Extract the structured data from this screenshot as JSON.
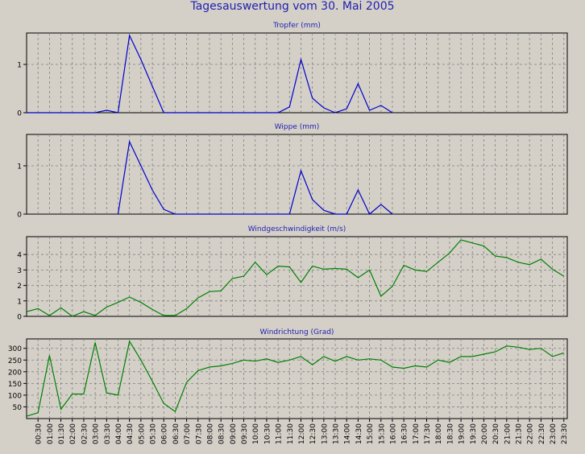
{
  "title": "Tagesauswertung vom 30. Mai 2005",
  "chart_data": [
    {
      "type": "line",
      "title": "Tropfer (mm)",
      "color": "#0000cc",
      "ylim": [
        0,
        1.6
      ],
      "yticks": [
        0,
        1
      ],
      "x": [
        "00:00",
        "00:30",
        "01:00",
        "01:30",
        "02:00",
        "02:30",
        "03:00",
        "03:30",
        "04:00",
        "04:30",
        "05:00",
        "05:30",
        "06:00",
        "06:30",
        "07:00",
        "07:30",
        "08:00",
        "08:30",
        "09:00",
        "09:30",
        "10:00",
        "10:30",
        "11:00",
        "11:30",
        "12:00",
        "12:30",
        "13:00",
        "13:30",
        "14:00",
        "14:30",
        "15:00",
        "15:30",
        "16:00"
      ],
      "values": [
        0,
        0,
        0,
        0,
        0,
        0,
        0,
        0.05,
        0,
        1.6,
        1.1,
        0.55,
        0,
        0,
        0,
        0,
        0,
        0,
        0,
        0,
        0,
        0,
        0,
        0.12,
        1.1,
        0.3,
        0.1,
        0,
        0.08,
        0.6,
        0.05,
        0.15,
        0
      ]
    },
    {
      "type": "line",
      "title": "Wippe (mm)",
      "color": "#0000cc",
      "ylim": [
        0,
        1.6
      ],
      "yticks": [
        0,
        1
      ],
      "x": [
        "04:00",
        "04:30",
        "05:00",
        "05:30",
        "06:00",
        "06:30",
        "07:00",
        "07:30",
        "08:00",
        "08:30",
        "09:00",
        "09:30",
        "10:00",
        "10:30",
        "11:00",
        "11:30",
        "12:00",
        "12:30",
        "13:00",
        "13:30",
        "14:00",
        "14:30",
        "15:00",
        "15:30",
        "16:00"
      ],
      "values": [
        0,
        1.5,
        1.0,
        0.5,
        0.1,
        0,
        0,
        0,
        0,
        0,
        0,
        0,
        0,
        0,
        0,
        0,
        0.9,
        0.3,
        0.08,
        0,
        0,
        0.5,
        0,
        0.2,
        0
      ]
    },
    {
      "type": "line",
      "title": "Windgeschwindigkeit (m/s)",
      "color": "#008000",
      "ylim": [
        0,
        5
      ],
      "yticks": [
        0,
        1,
        2,
        3,
        4
      ],
      "x": [
        "00:00",
        "00:30",
        "01:00",
        "01:30",
        "02:00",
        "02:30",
        "03:00",
        "03:30",
        "04:00",
        "04:30",
        "05:00",
        "05:30",
        "06:00",
        "06:30",
        "07:00",
        "07:30",
        "08:00",
        "08:30",
        "09:00",
        "09:30",
        "10:00",
        "10:30",
        "11:00",
        "11:30",
        "12:00",
        "12:30",
        "13:00",
        "13:30",
        "14:00",
        "14:30",
        "15:00",
        "15:30",
        "16:00",
        "16:30",
        "17:00",
        "17:30",
        "18:00",
        "18:30",
        "19:00",
        "19:30",
        "20:00",
        "20:30",
        "21:00",
        "21:30",
        "22:00",
        "22:30",
        "23:00",
        "23:30"
      ],
      "values": [
        0.3,
        0.5,
        0.05,
        0.55,
        0,
        0.3,
        0.05,
        0.6,
        0.9,
        1.25,
        0.9,
        0.45,
        0.05,
        0.05,
        0.5,
        1.2,
        1.6,
        1.65,
        2.45,
        2.6,
        3.5,
        2.7,
        3.25,
        3.2,
        2.2,
        3.25,
        3.05,
        3.1,
        3.05,
        2.5,
        3,
        1.3,
        1.95,
        3.3,
        3,
        2.9,
        3.5,
        4.1,
        4.95,
        4.75,
        4.55,
        3.9,
        3.8,
        3.5,
        3.35,
        3.7,
        3.05,
        2.6
      ]
    },
    {
      "type": "line",
      "title": "Windrichtung (Grad)",
      "color": "#008000",
      "ylim": [
        0,
        330
      ],
      "yticks": [
        50,
        100,
        150,
        200,
        250,
        300
      ],
      "x": [
        "00:00",
        "00:30",
        "01:00",
        "01:30",
        "02:00",
        "02:30",
        "03:00",
        "03:30",
        "04:00",
        "04:30",
        "05:00",
        "05:30",
        "06:00",
        "06:30",
        "07:00",
        "07:30",
        "08:00",
        "08:30",
        "09:00",
        "09:30",
        "10:00",
        "10:30",
        "11:00",
        "11:30",
        "12:00",
        "12:30",
        "13:00",
        "13:30",
        "14:00",
        "14:30",
        "15:00",
        "15:30",
        "16:00",
        "16:30",
        "17:00",
        "17:30",
        "18:00",
        "18:30",
        "19:00",
        "19:30",
        "20:00",
        "20:30",
        "21:00",
        "21:30",
        "22:00",
        "22:30",
        "23:00",
        "23:30"
      ],
      "values": [
        10,
        25,
        270,
        40,
        105,
        105,
        325,
        110,
        100,
        330,
        250,
        160,
        65,
        30,
        155,
        205,
        220,
        225,
        235,
        250,
        245,
        255,
        240,
        250,
        265,
        230,
        265,
        245,
        265,
        250,
        255,
        250,
        220,
        215,
        225,
        220,
        250,
        240,
        265,
        265,
        275,
        285,
        310,
        305,
        295,
        300,
        265,
        280
      ]
    }
  ],
  "x_tick_labels": [
    "00:30",
    "01:00",
    "01:30",
    "02:00",
    "02:30",
    "03:00",
    "03:30",
    "04:00",
    "04:30",
    "05:00",
    "05:30",
    "06:00",
    "06:30",
    "07:00",
    "07:30",
    "08:00",
    "08:30",
    "09:00",
    "09:30",
    "10:00",
    "10:30",
    "11:00",
    "11:30",
    "12:00",
    "12:30",
    "13:00",
    "13:30",
    "14:00",
    "14:30",
    "15:00",
    "15:30",
    "16:00",
    "16:30",
    "17:00",
    "17:30",
    "18:00",
    "18:30",
    "19:00",
    "19:30",
    "20:00",
    "20:30",
    "21:00",
    "21:30",
    "22:00",
    "22:30",
    "23:00",
    "23:30"
  ]
}
